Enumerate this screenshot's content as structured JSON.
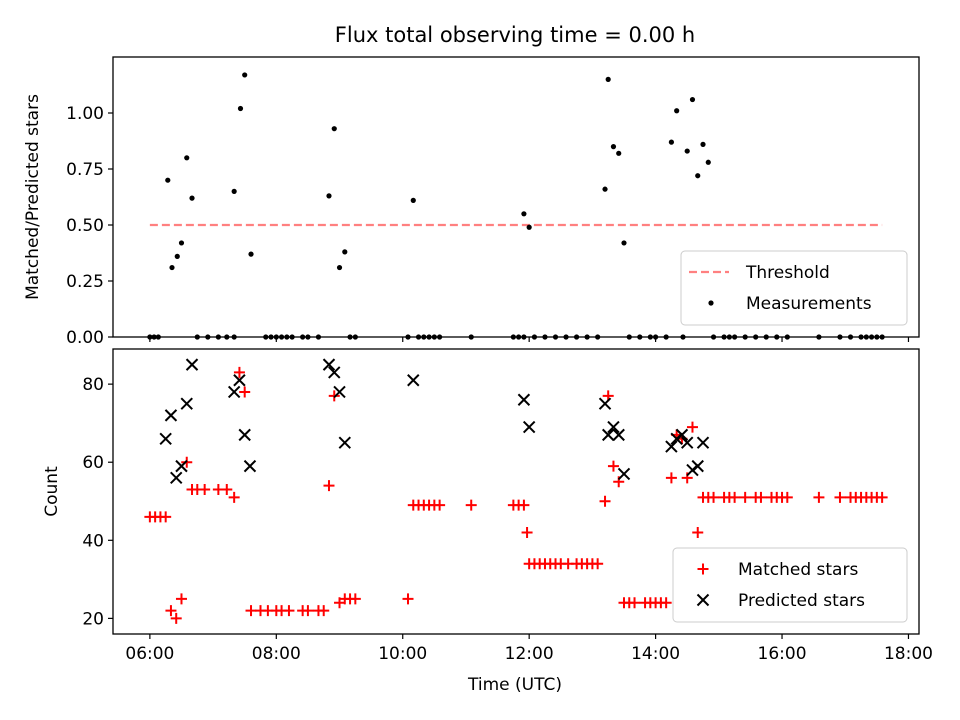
{
  "figure": {
    "title": "Flux total observing time = 0.00 h",
    "xlabel": "Time (UTC)"
  },
  "colors": {
    "threshold": "#ff8080",
    "measurements": "#000000",
    "matched": "#ff0000",
    "predicted": "#000000"
  },
  "chart_data": [
    {
      "type": "scatter",
      "ylabel": "Matched/Predicted stars",
      "xlim": [
        "05:25",
        "18:10"
      ],
      "ylim": [
        0,
        1.25
      ],
      "x_ticks": [
        "06:00",
        "08:00",
        "10:00",
        "12:00",
        "14:00",
        "16:00",
        "18:00"
      ],
      "y_ticks": [
        "0.00",
        "0.25",
        "0.50",
        "0.75",
        "1.00"
      ],
      "legend_position": "lower right",
      "threshold": {
        "name": "Threshold",
        "value": 0.5,
        "x_range": [
          "06:00",
          "17:35"
        ]
      },
      "series": [
        {
          "name": "Measurements",
          "marker": "dot",
          "points": [
            [
              "06:00",
              0
            ],
            [
              "06:04",
              0
            ],
            [
              "06:08",
              0
            ],
            [
              "06:17",
              0.7
            ],
            [
              "06:21",
              0.31
            ],
            [
              "06:26",
              0.36
            ],
            [
              "06:30",
              0.42
            ],
            [
              "06:35",
              0.8
            ],
            [
              "06:40",
              0.62
            ],
            [
              "06:45",
              0
            ],
            [
              "06:55",
              0
            ],
            [
              "07:05",
              0
            ],
            [
              "07:13",
              0
            ],
            [
              "07:20",
              0
            ],
            [
              "07:20",
              0.65
            ],
            [
              "07:26",
              1.02
            ],
            [
              "07:30",
              1.17
            ],
            [
              "07:36",
              0.37
            ],
            [
              "07:50",
              0
            ],
            [
              "07:55",
              0
            ],
            [
              "08:00",
              0
            ],
            [
              "08:05",
              0
            ],
            [
              "08:10",
              0
            ],
            [
              "08:15",
              0
            ],
            [
              "08:25",
              0
            ],
            [
              "08:30",
              0
            ],
            [
              "08:40",
              0
            ],
            [
              "08:50",
              0.63
            ],
            [
              "08:55",
              0.93
            ],
            [
              "09:00",
              0.31
            ],
            [
              "09:05",
              0.38
            ],
            [
              "09:10",
              0
            ],
            [
              "09:15",
              0
            ],
            [
              "10:05",
              0
            ],
            [
              "10:10",
              0.61
            ],
            [
              "10:15",
              0
            ],
            [
              "10:20",
              0
            ],
            [
              "10:25",
              0
            ],
            [
              "10:30",
              0
            ],
            [
              "10:35",
              0
            ],
            [
              "11:05",
              0
            ],
            [
              "11:45",
              0
            ],
            [
              "11:50",
              0
            ],
            [
              "11:55",
              0
            ],
            [
              "11:55",
              0.55
            ],
            [
              "12:00",
              0.49
            ],
            [
              "12:05",
              0
            ],
            [
              "12:15",
              0
            ],
            [
              "12:25",
              0
            ],
            [
              "12:35",
              0
            ],
            [
              "12:45",
              0
            ],
            [
              "12:55",
              0
            ],
            [
              "13:05",
              0
            ],
            [
              "13:12",
              0.66
            ],
            [
              "13:15",
              1.15
            ],
            [
              "13:20",
              0.85
            ],
            [
              "13:25",
              0.82
            ],
            [
              "13:30",
              0.42
            ],
            [
              "13:35",
              0
            ],
            [
              "13:45",
              0
            ],
            [
              "13:55",
              0
            ],
            [
              "14:00",
              0
            ],
            [
              "14:10",
              0
            ],
            [
              "14:15",
              0.87
            ],
            [
              "14:20",
              1.01
            ],
            [
              "14:26",
              0
            ],
            [
              "14:30",
              0.83
            ],
            [
              "14:35",
              1.06
            ],
            [
              "14:40",
              0.72
            ],
            [
              "14:45",
              0.86
            ],
            [
              "14:50",
              0.78
            ],
            [
              "14:55",
              0
            ],
            [
              "15:05",
              0
            ],
            [
              "15:10",
              0
            ],
            [
              "15:15",
              0
            ],
            [
              "15:25",
              0
            ],
            [
              "15:35",
              0
            ],
            [
              "15:45",
              0
            ],
            [
              "15:55",
              0
            ],
            [
              "16:05",
              0
            ],
            [
              "16:35",
              0
            ],
            [
              "16:55",
              0
            ],
            [
              "17:05",
              0
            ],
            [
              "17:15",
              0
            ],
            [
              "17:20",
              0
            ],
            [
              "17:25",
              0
            ],
            [
              "17:30",
              0
            ],
            [
              "17:35",
              0
            ]
          ]
        }
      ]
    },
    {
      "type": "scatter",
      "ylabel": "Count",
      "xlim": [
        "05:25",
        "18:10"
      ],
      "ylim": [
        16,
        89
      ],
      "x_ticks": [
        "06:00",
        "08:00",
        "10:00",
        "12:00",
        "14:00",
        "16:00",
        "18:00"
      ],
      "y_ticks": [
        "20",
        "40",
        "60",
        "80"
      ],
      "legend_position": "lower right",
      "series": [
        {
          "name": "Matched stars",
          "marker": "plus",
          "points": [
            [
              "06:00",
              46
            ],
            [
              "06:05",
              46
            ],
            [
              "06:10",
              46
            ],
            [
              "06:15",
              46
            ],
            [
              "06:20",
              22
            ],
            [
              "06:25",
              20
            ],
            [
              "06:30",
              25
            ],
            [
              "06:35",
              60
            ],
            [
              "06:40",
              53
            ],
            [
              "06:45",
              53
            ],
            [
              "06:52",
              53
            ],
            [
              "07:05",
              53
            ],
            [
              "07:13",
              53
            ],
            [
              "07:20",
              51
            ],
            [
              "07:25",
              83
            ],
            [
              "07:30",
              78
            ],
            [
              "07:36",
              22
            ],
            [
              "07:45",
              22
            ],
            [
              "07:52",
              22
            ],
            [
              "08:00",
              22
            ],
            [
              "08:05",
              22
            ],
            [
              "08:12",
              22
            ],
            [
              "08:25",
              22
            ],
            [
              "08:30",
              22
            ],
            [
              "08:40",
              22
            ],
            [
              "08:45",
              22
            ],
            [
              "08:50",
              54
            ],
            [
              "08:55",
              77
            ],
            [
              "09:00",
              24
            ],
            [
              "09:05",
              25
            ],
            [
              "09:10",
              25
            ],
            [
              "09:15",
              25
            ],
            [
              "10:05",
              25
            ],
            [
              "10:10",
              49
            ],
            [
              "10:15",
              49
            ],
            [
              "10:20",
              49
            ],
            [
              "10:25",
              49
            ],
            [
              "10:30",
              49
            ],
            [
              "10:35",
              49
            ],
            [
              "11:05",
              49
            ],
            [
              "11:45",
              49
            ],
            [
              "11:50",
              49
            ],
            [
              "11:55",
              49
            ],
            [
              "11:58",
              42
            ],
            [
              "12:00",
              34
            ],
            [
              "12:05",
              34
            ],
            [
              "12:10",
              34
            ],
            [
              "12:15",
              34
            ],
            [
              "12:20",
              34
            ],
            [
              "12:25",
              34
            ],
            [
              "12:30",
              34
            ],
            [
              "12:37",
              34
            ],
            [
              "12:45",
              34
            ],
            [
              "12:50",
              34
            ],
            [
              "12:55",
              34
            ],
            [
              "13:00",
              34
            ],
            [
              "13:05",
              34
            ],
            [
              "13:12",
              50
            ],
            [
              "13:15",
              77
            ],
            [
              "13:20",
              59
            ],
            [
              "13:25",
              55
            ],
            [
              "13:30",
              24
            ],
            [
              "13:35",
              24
            ],
            [
              "13:40",
              24
            ],
            [
              "13:50",
              24
            ],
            [
              "13:55",
              24
            ],
            [
              "14:00",
              24
            ],
            [
              "14:05",
              24
            ],
            [
              "14:10",
              24
            ],
            [
              "14:15",
              56
            ],
            [
              "14:20",
              67
            ],
            [
              "14:25",
              66
            ],
            [
              "14:30",
              56
            ],
            [
              "14:35",
              69
            ],
            [
              "14:40",
              42
            ],
            [
              "14:45",
              51
            ],
            [
              "14:50",
              51
            ],
            [
              "14:55",
              51
            ],
            [
              "15:05",
              51
            ],
            [
              "15:10",
              51
            ],
            [
              "15:15",
              51
            ],
            [
              "15:25",
              51
            ],
            [
              "15:35",
              51
            ],
            [
              "15:40",
              51
            ],
            [
              "15:50",
              51
            ],
            [
              "15:55",
              51
            ],
            [
              "16:00",
              51
            ],
            [
              "16:05",
              51
            ],
            [
              "16:35",
              51
            ],
            [
              "16:55",
              51
            ],
            [
              "17:05",
              51
            ],
            [
              "17:10",
              51
            ],
            [
              "17:15",
              51
            ],
            [
              "17:20",
              51
            ],
            [
              "17:25",
              51
            ],
            [
              "17:30",
              51
            ],
            [
              "17:35",
              51
            ]
          ]
        },
        {
          "name": "Predicted stars",
          "marker": "x",
          "points": [
            [
              "06:15",
              66
            ],
            [
              "06:20",
              72
            ],
            [
              "06:25",
              56
            ],
            [
              "06:30",
              59
            ],
            [
              "06:35",
              75
            ],
            [
              "06:40",
              85
            ],
            [
              "07:20",
              78
            ],
            [
              "07:25",
              81
            ],
            [
              "07:30",
              67
            ],
            [
              "07:35",
              59
            ],
            [
              "08:50",
              85
            ],
            [
              "08:55",
              83
            ],
            [
              "09:00",
              78
            ],
            [
              "09:05",
              65
            ],
            [
              "10:10",
              81
            ],
            [
              "11:55",
              76
            ],
            [
              "12:00",
              69
            ],
            [
              "13:12",
              75
            ],
            [
              "13:15",
              67
            ],
            [
              "13:20",
              69
            ],
            [
              "13:25",
              67
            ],
            [
              "13:30",
              57
            ],
            [
              "14:15",
              64
            ],
            [
              "14:20",
              66
            ],
            [
              "14:25",
              67
            ],
            [
              "14:30",
              65
            ],
            [
              "14:35",
              58
            ],
            [
              "14:40",
              59
            ],
            [
              "14:45",
              65
            ]
          ]
        }
      ]
    }
  ]
}
